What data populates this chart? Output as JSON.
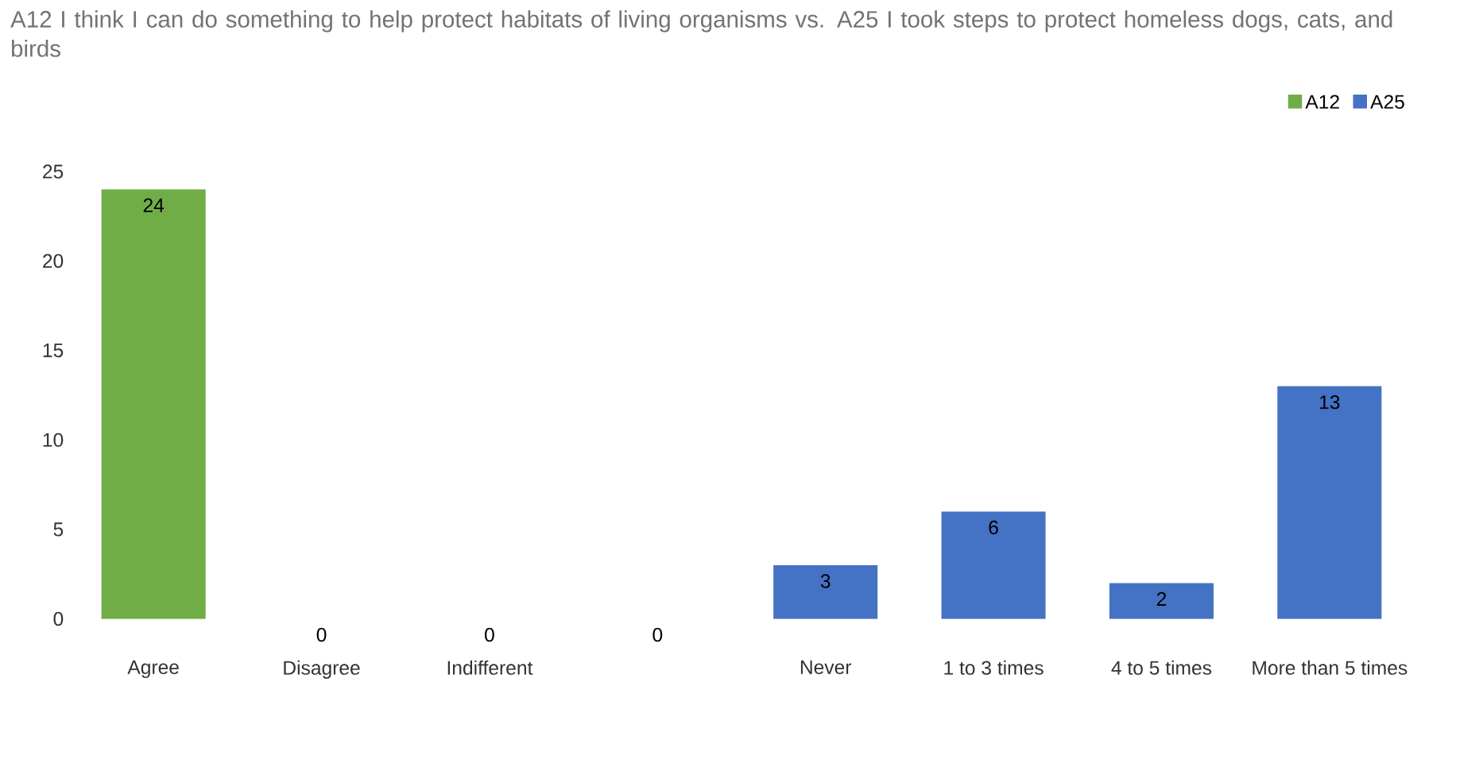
{
  "chart_data": {
    "type": "bar",
    "title": "A12 I think I can do something to help protect habitats of living organisms  vs.  A25 I took steps to protect homeless dogs, cats, and birds",
    "categories": [
      "Agree",
      "Disagree",
      "Indifferent",
      null,
      "Never",
      "1 to 3 times",
      "4 to 5 times",
      "More than 5 times"
    ],
    "series": [
      {
        "name": "A12",
        "color": "#70ad47",
        "values": [
          24,
          0,
          0,
          0,
          null,
          null,
          null,
          null
        ]
      },
      {
        "name": "A25",
        "color": "#4472c4",
        "values": [
          null,
          null,
          null,
          null,
          3,
          6,
          2,
          13
        ]
      }
    ],
    "ylim": [
      0,
      25
    ],
    "yticks": [
      0,
      5,
      10,
      15,
      20,
      25
    ],
    "data_labels": true,
    "grid": false,
    "legend": "top right"
  }
}
